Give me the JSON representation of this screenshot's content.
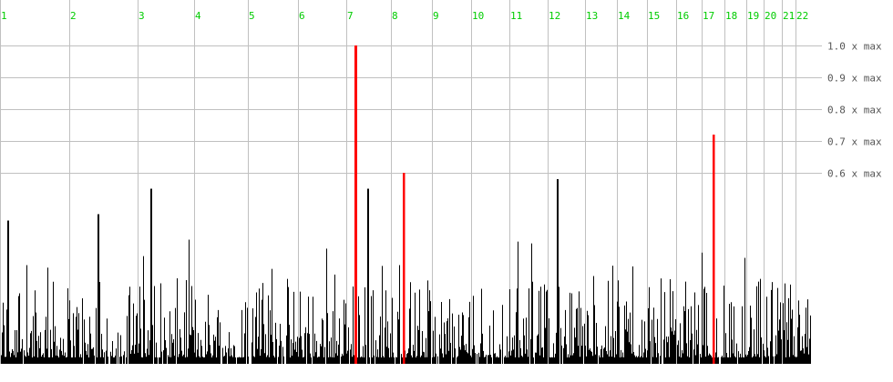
{
  "chart_data": {
    "type": "bar",
    "title": "",
    "xlabel": "",
    "ylabel": "",
    "chromosomes": [
      "1",
      "2",
      "3",
      "4",
      "5",
      "6",
      "7",
      "8",
      "9",
      "10",
      "11",
      "12",
      "13",
      "14",
      "15",
      "16",
      "17",
      "18",
      "19",
      "20",
      "21",
      "22"
    ],
    "y_ticks": [
      "1.0 x max",
      "0.9 x max",
      "0.8 x max",
      "0.7 x max",
      "0.6 x max"
    ],
    "y_tick_values": [
      1.0,
      0.9,
      0.8,
      0.7,
      0.6
    ],
    "ylim": [
      0,
      1.0
    ],
    "grid": true,
    "highlighted_peaks": [
      {
        "chromosome": "7",
        "value": 1.0
      },
      {
        "chromosome": "8",
        "value": 0.6
      },
      {
        "chromosome": "17",
        "value": 0.72
      }
    ],
    "notable_background_peaks": [
      {
        "chromosome": "1",
        "value": 0.45
      },
      {
        "chromosome": "2",
        "value": 0.47
      },
      {
        "chromosome": "3",
        "value": 0.55
      },
      {
        "chromosome": "7",
        "value": 0.55
      },
      {
        "chromosome": "12",
        "value": 0.58
      }
    ],
    "colors": {
      "bars": "#000000",
      "highlight": "#ff0000",
      "chromosome_labels": "#00cc00",
      "grid": "#c0c0c0",
      "tick_labels": "#555555"
    }
  }
}
